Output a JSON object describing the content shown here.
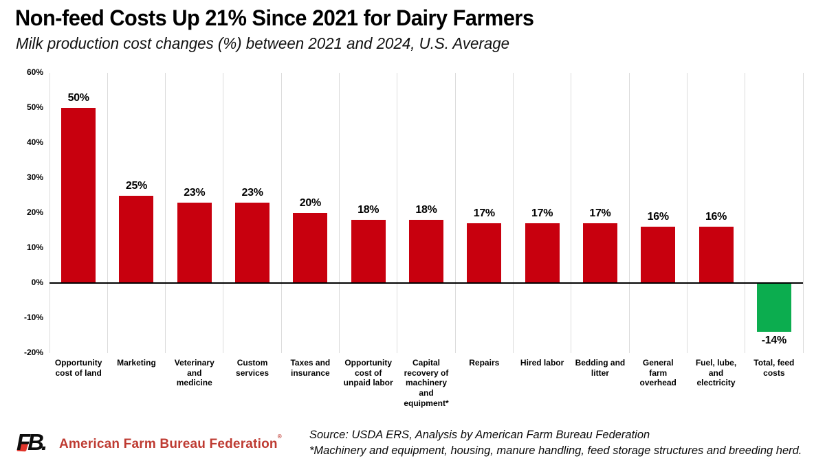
{
  "header": {
    "title": "Non-feed Costs Up 21% Since 2021 for Dairy Farmers",
    "subtitle": "Milk production cost changes (%) between 2021 and 2024, U.S. Average"
  },
  "chart_data": {
    "type": "bar",
    "title": "Non-feed Costs Up 21% Since 2021 for Dairy Farmers",
    "subtitle": "Milk production cost changes (%) between 2021 and 2024, U.S. Average",
    "categories": [
      "Opportunity\ncost of land",
      "Marketing",
      "Veterinary\nand\nmedicine",
      "Custom\nservices",
      "Taxes and\ninsurance",
      "Opportunity\ncost of\nunpaid labor",
      "Capital\nrecovery of\nmachinery\nand\nequipment*",
      "Repairs",
      "Hired labor",
      "Bedding and\nlitter",
      "General\nfarm\noverhead",
      "Fuel, lube,\nand\nelectricity",
      "Total, feed\ncosts"
    ],
    "values": [
      50,
      25,
      23,
      23,
      20,
      18,
      18,
      17,
      17,
      17,
      16,
      16,
      -14
    ],
    "value_label_format": "percent",
    "y_ticks": [
      "60%",
      "50%",
      "40%",
      "30%",
      "20%",
      "10%",
      "0%",
      "-10%",
      "-20%"
    ],
    "ylim": [
      -20,
      60
    ],
    "xlabel": "",
    "ylabel": "",
    "grid": "vertical-only",
    "legend": "none",
    "colors": {
      "positive_bar": "#c8000e",
      "negative_bar": "#0cad4f",
      "gridline": "#dbdbdb",
      "zero_line": "#000000"
    }
  },
  "footer": {
    "logo_text": "FB.",
    "org_name": "American Farm Bureau Federation",
    "trademark": "®",
    "source_line1": "Source: USDA ERS, Analysis by American Farm Bureau Federation",
    "source_line2": "*Machinery and equipment, housing, manure handling, feed storage structures and breeding herd."
  }
}
